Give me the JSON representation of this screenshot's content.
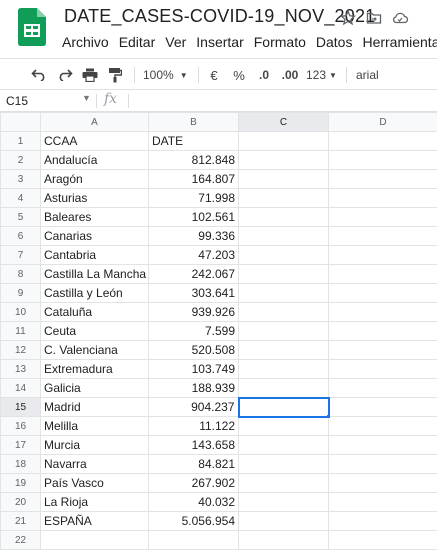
{
  "document": {
    "title": "DATE_CASES-COVID-19_NOV_2021"
  },
  "icons": {
    "logo": "sheets-logo-icon",
    "star": "star-icon",
    "move": "folder-move-icon",
    "cloud": "cloud-status-icon",
    "undo": "undo-icon",
    "redo": "redo-icon",
    "print": "print-icon",
    "paint_format": "paint-format-icon"
  },
  "menu": [
    "Archivo",
    "Editar",
    "Ver",
    "Insertar",
    "Formato",
    "Datos",
    "Herramientas"
  ],
  "toolbar": {
    "zoom": "100%",
    "currency": "€",
    "percent": "%",
    "decrease_decimals": ".0",
    "increase_decimals": ".00",
    "more_formats": "123",
    "font": "arial"
  },
  "formula_bar": {
    "cell_ref": "C15",
    "fx": "fx",
    "content": ""
  },
  "columns": [
    "A",
    "B",
    "C",
    "D"
  ],
  "rows": [
    {
      "num": "1",
      "a": "CCAA",
      "b": "DATE",
      "b_align": "left"
    },
    {
      "num": "2",
      "a": "Andalucía",
      "b": "812.848"
    },
    {
      "num": "3",
      "a": "Aragón",
      "b": "164.807"
    },
    {
      "num": "4",
      "a": "Asturias",
      "b": "71.998"
    },
    {
      "num": "5",
      "a": "Baleares",
      "b": "102.561"
    },
    {
      "num": "6",
      "a": "Canarias",
      "b": "99.336"
    },
    {
      "num": "7",
      "a": "Cantabria",
      "b": "47.203"
    },
    {
      "num": "8",
      "a": "Castilla La Mancha",
      "b": "242.067"
    },
    {
      "num": "9",
      "a": "Castilla y León",
      "b": "303.641"
    },
    {
      "num": "10",
      "a": "Cataluña",
      "b": "939.926"
    },
    {
      "num": "11",
      "a": "Ceuta",
      "b": "7.599"
    },
    {
      "num": "12",
      "a": "C. Valenciana",
      "b": "520.508"
    },
    {
      "num": "13",
      "a": "Extremadura",
      "b": "103.749"
    },
    {
      "num": "14",
      "a": "Galicia",
      "b": "188.939"
    },
    {
      "num": "15",
      "a": "Madrid",
      "b": "904.237"
    },
    {
      "num": "16",
      "a": "Melilla",
      "b": "11.122"
    },
    {
      "num": "17",
      "a": "Murcia",
      "b": "143.658"
    },
    {
      "num": "18",
      "a": "Navarra",
      "b": "84.821"
    },
    {
      "num": "19",
      "a": "País Vasco",
      "b": "267.902"
    },
    {
      "num": "20",
      "a": "La Rioja",
      "b": "40.032"
    },
    {
      "num": "21",
      "a": "ESPAÑA",
      "b": "5.056.954"
    },
    {
      "num": "22",
      "a": "",
      "b": ""
    }
  ],
  "selection": {
    "column": "C",
    "row": "15"
  }
}
